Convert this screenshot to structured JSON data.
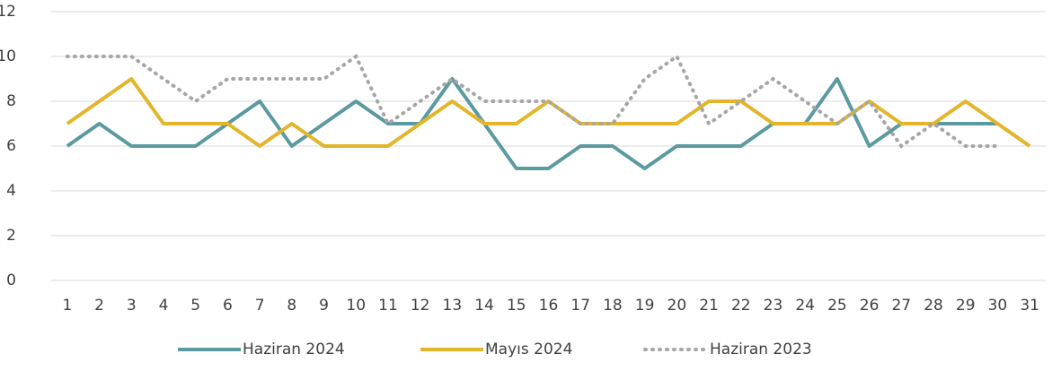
{
  "chart_data": {
    "type": "line",
    "categories": [
      1,
      2,
      3,
      4,
      5,
      6,
      7,
      8,
      9,
      10,
      11,
      12,
      13,
      14,
      15,
      16,
      17,
      18,
      19,
      20,
      21,
      22,
      23,
      24,
      25,
      26,
      27,
      28,
      29,
      30,
      31
    ],
    "series": [
      {
        "name": "Haziran 2024",
        "color": "#5b9aa0",
        "style": "solid",
        "values": [
          6,
          7,
          6,
          6,
          6,
          7,
          8,
          6,
          7,
          8,
          7,
          7,
          9,
          7,
          5,
          5,
          6,
          6,
          5,
          6,
          6,
          6,
          7,
          7,
          9,
          6,
          7,
          7,
          7,
          7,
          null
        ]
      },
      {
        "name": "Mayıs 2024",
        "color": "#e3b52a",
        "style": "solid",
        "values": [
          7,
          8,
          9,
          7,
          7,
          7,
          6,
          7,
          6,
          6,
          6,
          7,
          8,
          7,
          7,
          8,
          7,
          7,
          7,
          7,
          8,
          8,
          7,
          7,
          7,
          8,
          7,
          7,
          8,
          7,
          6
        ]
      },
      {
        "name": "Haziran 2023",
        "color": "#a6a6a6",
        "style": "dotted",
        "values": [
          10,
          10,
          10,
          9,
          8,
          9,
          9,
          9,
          9,
          10,
          7,
          8,
          9,
          8,
          8,
          8,
          7,
          7,
          9,
          10,
          7,
          8,
          9,
          8,
          7,
          8,
          6,
          7,
          6,
          6,
          null
        ]
      }
    ],
    "ylim": [
      0,
      12
    ],
    "yticks": [
      0,
      2,
      4,
      6,
      8,
      10,
      12
    ],
    "grid": true,
    "legend": "bottom"
  }
}
